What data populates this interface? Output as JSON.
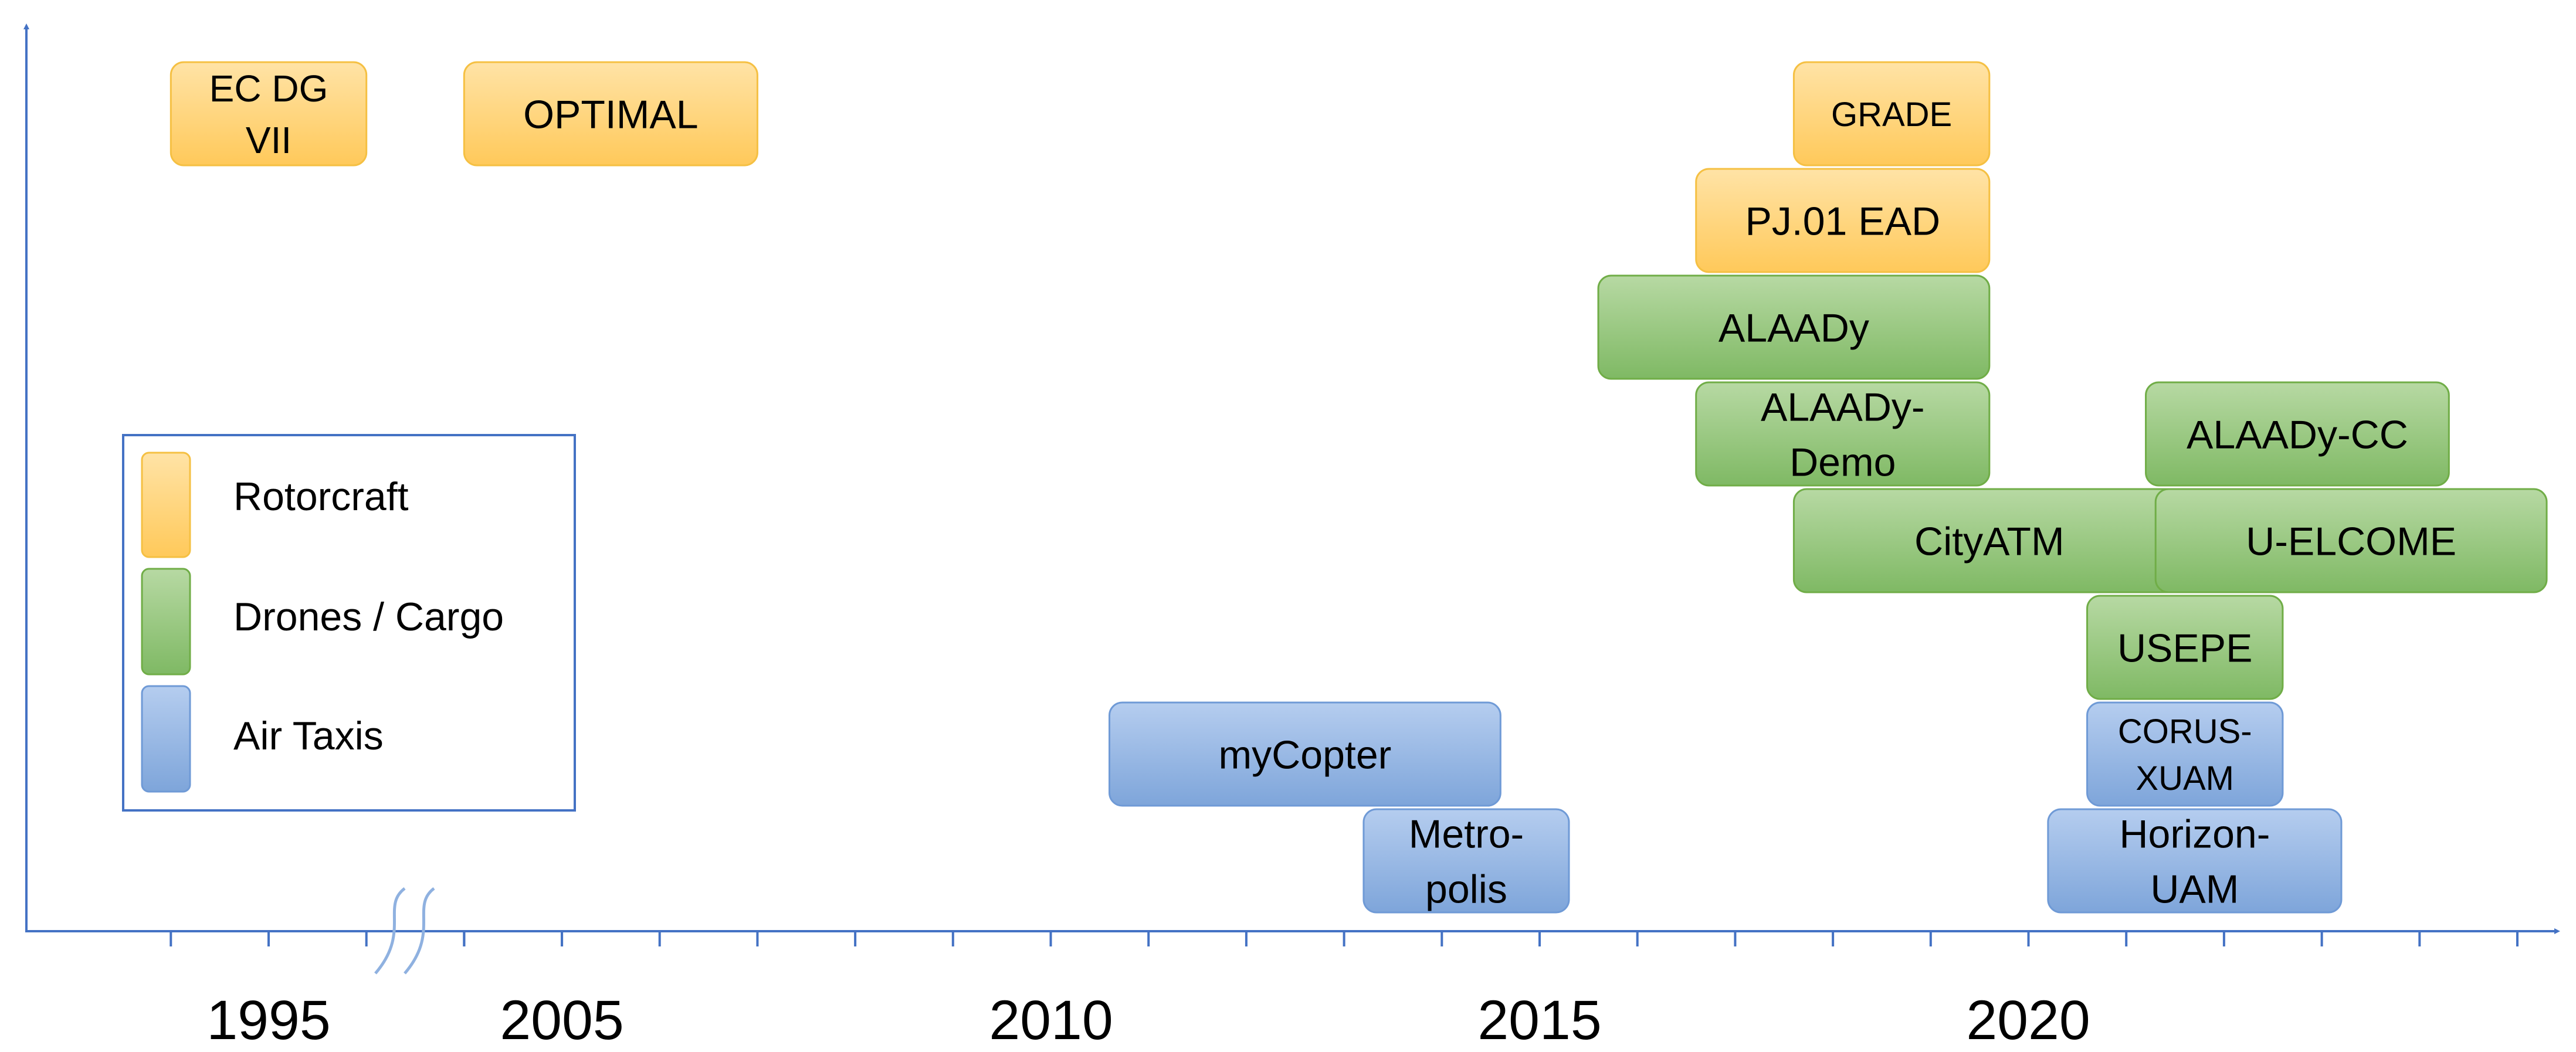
{
  "chart_data": {
    "type": "timeline",
    "x_tick_labels": [
      "1995",
      "2005",
      "2010",
      "2015",
      "2020"
    ],
    "axis_break_between": [
      "1995",
      "2005"
    ],
    "categories": [
      {
        "id": "rotorcraft",
        "label": "Rotorcraft",
        "color": "#ffd37a"
      },
      {
        "id": "drones",
        "label": "Drones / Cargo",
        "color": "#96c47c"
      },
      {
        "id": "taxis",
        "label": "Air Taxis",
        "color": "#8fb1e0"
      }
    ],
    "legend_position": "left",
    "projects": [
      {
        "name": "EC DG VII",
        "lines": [
          "EC DG",
          "VII"
        ],
        "category": "rotorcraft",
        "start": 1994,
        "end": 1996
      },
      {
        "name": "OPTIMAL",
        "lines": [
          "OPTIMAL"
        ],
        "category": "rotorcraft",
        "start": 2004,
        "end": 2007
      },
      {
        "name": "GRADE",
        "lines": [
          "GRADE"
        ],
        "category": "rotorcraft",
        "start": 2017.6,
        "end": 2019.6
      },
      {
        "name": "PJ.01 EAD",
        "lines": [
          "PJ.01 EAD"
        ],
        "category": "rotorcraft",
        "start": 2016.6,
        "end": 2019.6
      },
      {
        "name": "ALAADy",
        "lines": [
          "ALAADy"
        ],
        "category": "drones",
        "start": 2015.6,
        "end": 2019.6
      },
      {
        "name": "ALAADy-Demo",
        "lines": [
          "ALAADy-",
          "Demo"
        ],
        "category": "drones",
        "start": 2016.6,
        "end": 2019.6
      },
      {
        "name": "ALAADy-CC",
        "lines": [
          "ALAADy-CC"
        ],
        "category": "drones",
        "start": 2021.2,
        "end": 2024.3
      },
      {
        "name": "CityATM",
        "lines": [
          "CityATM"
        ],
        "category": "drones",
        "start": 2017.6,
        "end": 2021.6
      },
      {
        "name": "U-ELCOME",
        "lines": [
          "U-ELCOME"
        ],
        "category": "drones",
        "start": 2021.3,
        "end": 2025.3
      },
      {
        "name": "USEPE",
        "lines": [
          "USEPE"
        ],
        "category": "drones",
        "start": 2020.6,
        "end": 2022.6
      },
      {
        "name": "CORUS-XUAM",
        "lines": [
          "CORUS-",
          "XUAM"
        ],
        "category": "taxis",
        "start": 2020.6,
        "end": 2022.6
      },
      {
        "name": "myCopter",
        "lines": [
          "myCopter"
        ],
        "category": "taxis",
        "start": 2010.6,
        "end": 2014.6
      },
      {
        "name": "Metropolis",
        "lines": [
          "Metro-",
          "polis"
        ],
        "category": "taxis",
        "start": 2013.2,
        "end": 2015.3
      },
      {
        "name": "Horizon-UAM",
        "lines": [
          "Horizon-",
          "UAM"
        ],
        "category": "taxis",
        "start": 2020.2,
        "end": 2023.2
      }
    ]
  }
}
